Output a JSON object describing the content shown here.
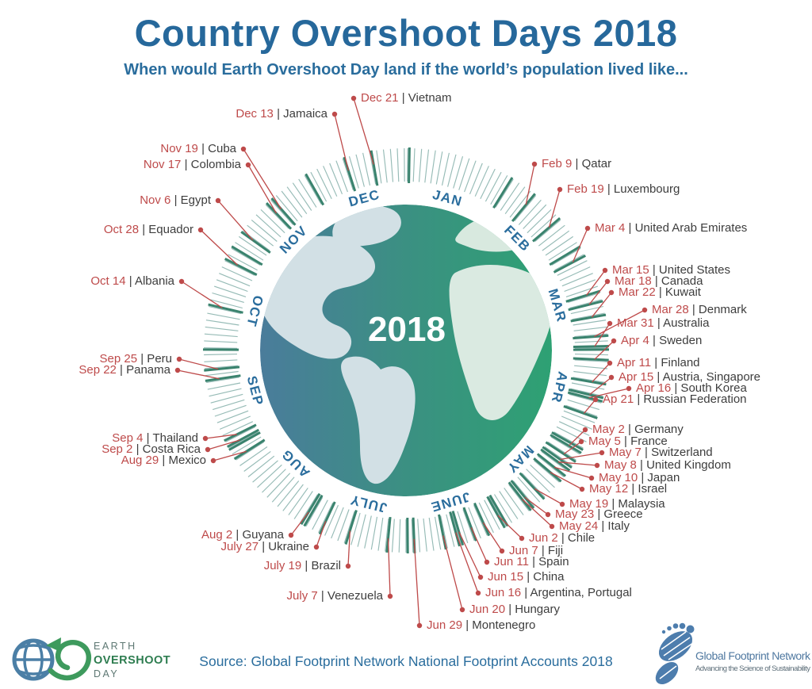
{
  "header": {
    "title": "Country Overshoot Days 2018",
    "subtitle": "When would Earth Overshoot Day  land if the world’s population lived like..."
  },
  "chart_data": {
    "type": "radial-calendar",
    "title": "Country Overshoot Days 2018",
    "center_label": "2018",
    "months": [
      "JAN",
      "FEB",
      "MAR",
      "APR",
      "MAY",
      "JUNE",
      "JULY",
      "AUG",
      "SEP",
      "OCT",
      "NOV",
      "DEC"
    ],
    "entries": [
      {
        "date": "Feb 9",
        "country": "Qatar",
        "day": 40
      },
      {
        "date": "Feb 19",
        "country": "Luxembourg",
        "day": 50
      },
      {
        "date": "Mar 4",
        "country": "United Arab Emirates",
        "day": 63
      },
      {
        "date": "Mar 15",
        "country": "United States",
        "day": 74
      },
      {
        "date": "Mar 18",
        "country": "Canada",
        "day": 77
      },
      {
        "date": "Mar 22",
        "country": "Kuwait",
        "day": 81
      },
      {
        "date": "Mar 28",
        "country": "Denmark",
        "day": 87
      },
      {
        "date": "Mar 31",
        "country": "Australia",
        "day": 90
      },
      {
        "date": "Apr 4",
        "country": "Sweden",
        "day": 94
      },
      {
        "date": "Apr 11",
        "country": "Finland",
        "day": 101
      },
      {
        "date": "Apr 15",
        "country": "Austria, Singapore",
        "day": 105
      },
      {
        "date": "Apr 16",
        "country": "South Korea",
        "day": 106
      },
      {
        "date": "Ap 21",
        "country": "Russian Federation",
        "day": 111
      },
      {
        "date": "May 2",
        "country": "Germany",
        "day": 122
      },
      {
        "date": "May 5",
        "country": "France",
        "day": 125
      },
      {
        "date": "May 7",
        "country": "Switzerland",
        "day": 127
      },
      {
        "date": "May 8",
        "country": "United Kingdom",
        "day": 128
      },
      {
        "date": "May 10",
        "country": "Japan",
        "day": 130
      },
      {
        "date": "May 12",
        "country": "Israel",
        "day": 132
      },
      {
        "date": "May 19",
        "country": "Malaysia",
        "day": 139
      },
      {
        "date": "May 23",
        "country": "Greece",
        "day": 143
      },
      {
        "date": "May 24",
        "country": "Italy",
        "day": 144
      },
      {
        "date": "Jun 2",
        "country": "Chile",
        "day": 153
      },
      {
        "date": "Jun 7",
        "country": "Fiji",
        "day": 158
      },
      {
        "date": "Jun 11",
        "country": "Spain",
        "day": 162
      },
      {
        "date": "Jun 15",
        "country": "China",
        "day": 166
      },
      {
        "date": "Jun 16",
        "country": "Argentina, Portugal",
        "day": 167
      },
      {
        "date": "Jun 20",
        "country": "Hungary",
        "day": 171
      },
      {
        "date": "Jun 29",
        "country": "Montenegro",
        "day": 180
      },
      {
        "date": "July 7",
        "country": "Venezuela",
        "day": 188
      },
      {
        "date": "July 19",
        "country": "Brazil",
        "day": 200
      },
      {
        "date": "July 27",
        "country": "Ukraine",
        "day": 208
      },
      {
        "date": "Aug 2",
        "country": "Guyana",
        "day": 214
      },
      {
        "date": "Aug 29",
        "country": "Mexico",
        "day": 241
      },
      {
        "date": "Sep 2",
        "country": "Costa Rica",
        "day": 245
      },
      {
        "date": "Sep 4",
        "country": "Thailand",
        "day": 247
      },
      {
        "date": "Sep 22",
        "country": "Panama",
        "day": 265
      },
      {
        "date": "Sep 25",
        "country": "Peru",
        "day": 268
      },
      {
        "date": "Oct 14",
        "country": "Albania",
        "day": 287
      },
      {
        "date": "Oct 28",
        "country": "Equador",
        "day": 301
      },
      {
        "date": "Nov 6",
        "country": "Egypt",
        "day": 310
      },
      {
        "date": "Nov 17",
        "country": "Colombia",
        "day": 321
      },
      {
        "date": "Nov 19",
        "country": "Cuba",
        "day": 323
      },
      {
        "date": "Dec 13",
        "country": "Jamaica",
        "day": 347
      },
      {
        "date": "Dec 21",
        "country": "Vietnam",
        "day": 355
      }
    ]
  },
  "footer": {
    "source": "Source: Global Footprint Network National Footprint Accounts 2018",
    "eod_logo": {
      "line1": "EARTH",
      "line2": "OVERSHOOT",
      "line3": "DAY"
    },
    "gfn_logo": {
      "name": "Global Footprint Network",
      "tagline": "Advancing the Science of Sustainability"
    }
  },
  "colors": {
    "blue": "#2A6D9D",
    "red": "#BE4A4A",
    "dark": "#3D3D3D",
    "tick": "#96BBB6",
    "tick_dark": "#3A836E",
    "ocean_left": "#4A7C9B",
    "ocean_mid": "#3B9082",
    "ocean_right": "#2EA173",
    "land": "#D2E0E5",
    "land_green": "#D8E9DF",
    "eod_green": "#2E7D50",
    "gfn_blue": "#4F78A0"
  }
}
